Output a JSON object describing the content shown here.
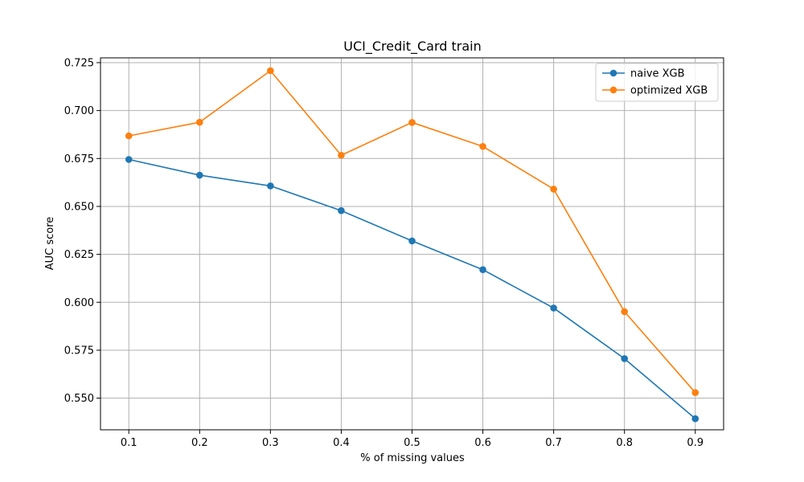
{
  "chart_data": {
    "type": "line",
    "title": "UCI_Credit_Card train",
    "xlabel": "% of missing values",
    "ylabel": "AUC score",
    "x": [
      0.1,
      0.2,
      0.3,
      0.4,
      0.5,
      0.6,
      0.7,
      0.8,
      0.9
    ],
    "x_tick_labels": [
      "0.1",
      "0.2",
      "0.3",
      "0.4",
      "0.5",
      "0.6",
      "0.7",
      "0.8",
      "0.9"
    ],
    "y_ticks": [
      0.55,
      0.575,
      0.6,
      0.625,
      0.65,
      0.675,
      0.7,
      0.725
    ],
    "y_tick_labels": [
      "0.550",
      "0.575",
      "0.600",
      "0.625",
      "0.650",
      "0.675",
      "0.700",
      "0.725"
    ],
    "xlim": [
      0.06,
      0.94
    ],
    "ylim": [
      0.5335,
      0.7275
    ],
    "grid": true,
    "legend_position": "top-right",
    "series": [
      {
        "name": "naive XGB",
        "color": "#1f77b4",
        "marker": "circle",
        "values": [
          0.6745,
          0.6663,
          0.6607,
          0.6478,
          0.632,
          0.617,
          0.597,
          0.5706,
          0.5393
        ]
      },
      {
        "name": "optimized XGB",
        "color": "#ff7f0e",
        "marker": "circle",
        "values": [
          0.6868,
          0.6939,
          0.7208,
          0.6767,
          0.6938,
          0.6813,
          0.659,
          0.5951,
          0.5529
        ]
      }
    ]
  }
}
